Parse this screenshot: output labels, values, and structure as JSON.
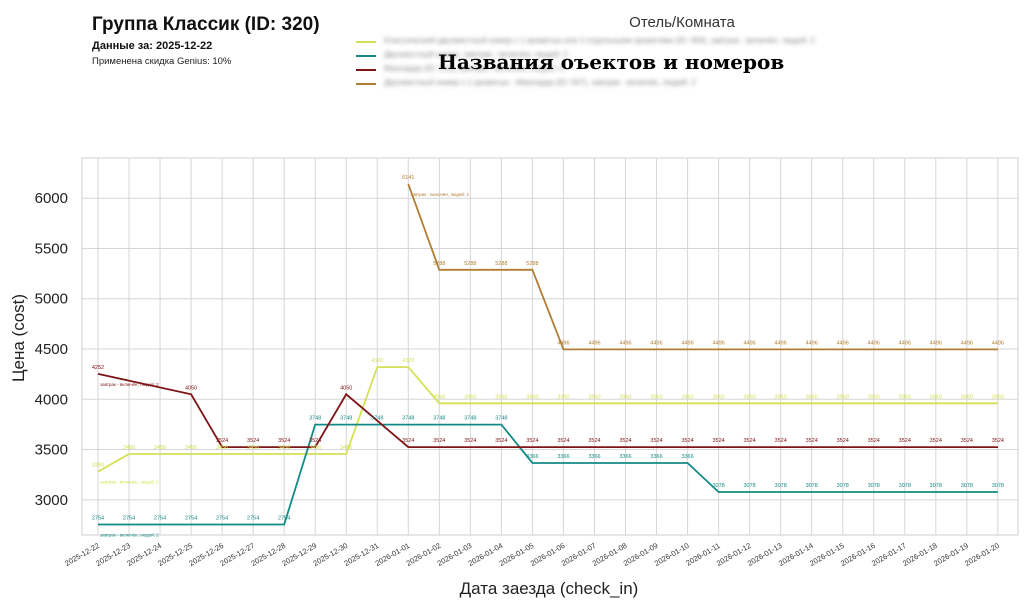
{
  "header": {
    "title": "Группа Классик (ID: 320)",
    "data_date": "Данные за: 2025-12-22",
    "discount": "Применена скидка Genius: 10%"
  },
  "legend": {
    "title": "Отель/Комната",
    "overlay": "Названия оъектов и номеров"
  },
  "chart_data": {
    "type": "line",
    "xlabel": "Дата заезда (check_in)",
    "ylabel": "Цена (cost)",
    "ylim": [
      2650,
      6400
    ],
    "yticks": [
      3000,
      3500,
      4000,
      4500,
      5000,
      5500,
      6000
    ],
    "grid": true,
    "legend_placement": "top",
    "x": [
      "2025-12-22",
      "2025-12-23",
      "2025-12-24",
      "2025-12-25",
      "2025-12-26",
      "2025-12-27",
      "2025-12-28",
      "2025-12-29",
      "2025-12-30",
      "2025-12-31",
      "2026-01-01",
      "2026-01-02",
      "2026-01-03",
      "2026-01-04",
      "2026-01-05",
      "2026-01-06",
      "2026-01-07",
      "2026-01-08",
      "2026-01-09",
      "2026-01-10",
      "2026-01-11",
      "2026-01-12",
      "2026-01-13",
      "2026-01-14",
      "2026-01-15",
      "2026-01-16",
      "2026-01-17",
      "2026-01-18",
      "2026-01-19",
      "2026-01-20"
    ],
    "series": [
      {
        "name": "Классический двухместный номер с 1 кроватью или 2 отдельными кроватями (ID: 494), завтрак - включён, людей: 2",
        "color": "#d4e157",
        "values": [
          3280,
          3456,
          3456,
          3456,
          3456,
          3456,
          3456,
          3456,
          3456,
          4320,
          4320,
          3960,
          3960,
          3960,
          3960,
          3960,
          3960,
          3960,
          3960,
          3960,
          3960,
          3960,
          3960,
          3960,
          3960,
          3960,
          3960,
          3960,
          3960,
          3960
        ],
        "annotation": "завтрак - включён, людей: 2",
        "annotation_index": 0
      },
      {
        "name": "Двухместный номер, завтрак - включён, людей: 2",
        "color": "#138a86",
        "values": [
          2754,
          2754,
          2754,
          2754,
          2754,
          2754,
          2754,
          3748,
          3748,
          3748,
          3748,
          3748,
          3748,
          3748,
          3366,
          3366,
          3366,
          3366,
          3366,
          3366,
          3078,
          3078,
          3078,
          3078,
          3078,
          3078,
          3078,
          3078,
          3078,
          3078
        ],
        "annotation": "завтрак - включён, людей: 2",
        "annotation_index": 0
      },
      {
        "name": "Мансарда (ID: 513), завтрак - включён, людей: 2",
        "color": "#7e1416",
        "values": [
          4252,
          null,
          null,
          4050,
          3524,
          3524,
          3524,
          3524,
          4050,
          null,
          3524,
          3524,
          3524,
          3524,
          3524,
          3524,
          3524,
          3524,
          3524,
          3524,
          3524,
          3524,
          3524,
          3524,
          3524,
          3524,
          3524,
          3524,
          3524,
          3524
        ],
        "annotation": "завтрак - включён, людей: 2",
        "annotation_index": 0
      },
      {
        "name": "Двухместный номер с 1 кроватью - Мансарда (ID: 507), завтрак - включён, людей: 2",
        "color": "#b07d32",
        "values": [
          null,
          null,
          null,
          null,
          null,
          null,
          null,
          null,
          null,
          null,
          6141,
          5288,
          5288,
          5288,
          5288,
          4496,
          4496,
          4496,
          4496,
          4496,
          4496,
          4496,
          4496,
          4496,
          4496,
          4496,
          4496,
          4496,
          4496,
          4496
        ],
        "annotation": "завтрак - включён, людей: 2",
        "annotation_index": 10
      }
    ]
  }
}
